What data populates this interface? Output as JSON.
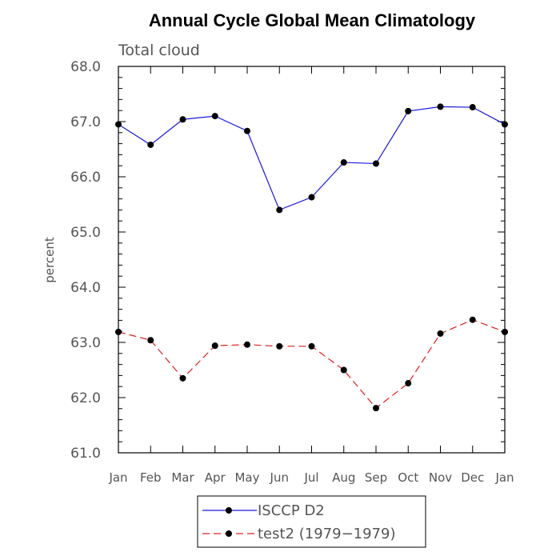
{
  "chart_data": {
    "type": "line",
    "title": "Annual Cycle Global Mean Climatology",
    "subtitle": "Total cloud",
    "xlabel": "",
    "ylabel": "percent",
    "categories": [
      "Jan",
      "Feb",
      "Mar",
      "Apr",
      "May",
      "Jun",
      "Jul",
      "Aug",
      "Sep",
      "Oct",
      "Nov",
      "Dec",
      "Jan"
    ],
    "ylim": [
      61.0,
      68.0
    ],
    "yticks": [
      "61.0",
      "62.0",
      "63.0",
      "64.0",
      "65.0",
      "66.0",
      "67.0",
      "68.0"
    ],
    "grid": false,
    "legend_position": "bottom-center",
    "series": [
      {
        "name": "ISCCP D2",
        "color": "#1a1adc",
        "dash": "solid",
        "values": [
          66.95,
          66.58,
          67.04,
          67.1,
          66.83,
          65.4,
          65.63,
          66.26,
          66.24,
          67.19,
          67.27,
          67.26,
          66.95
        ]
      },
      {
        "name": "test2 (1979−1979)",
        "color": "#e02020",
        "dash": "dashed",
        "values": [
          63.19,
          63.04,
          62.35,
          62.94,
          62.96,
          62.93,
          62.93,
          62.5,
          61.81,
          62.26,
          63.16,
          63.41,
          63.19
        ]
      }
    ]
  }
}
